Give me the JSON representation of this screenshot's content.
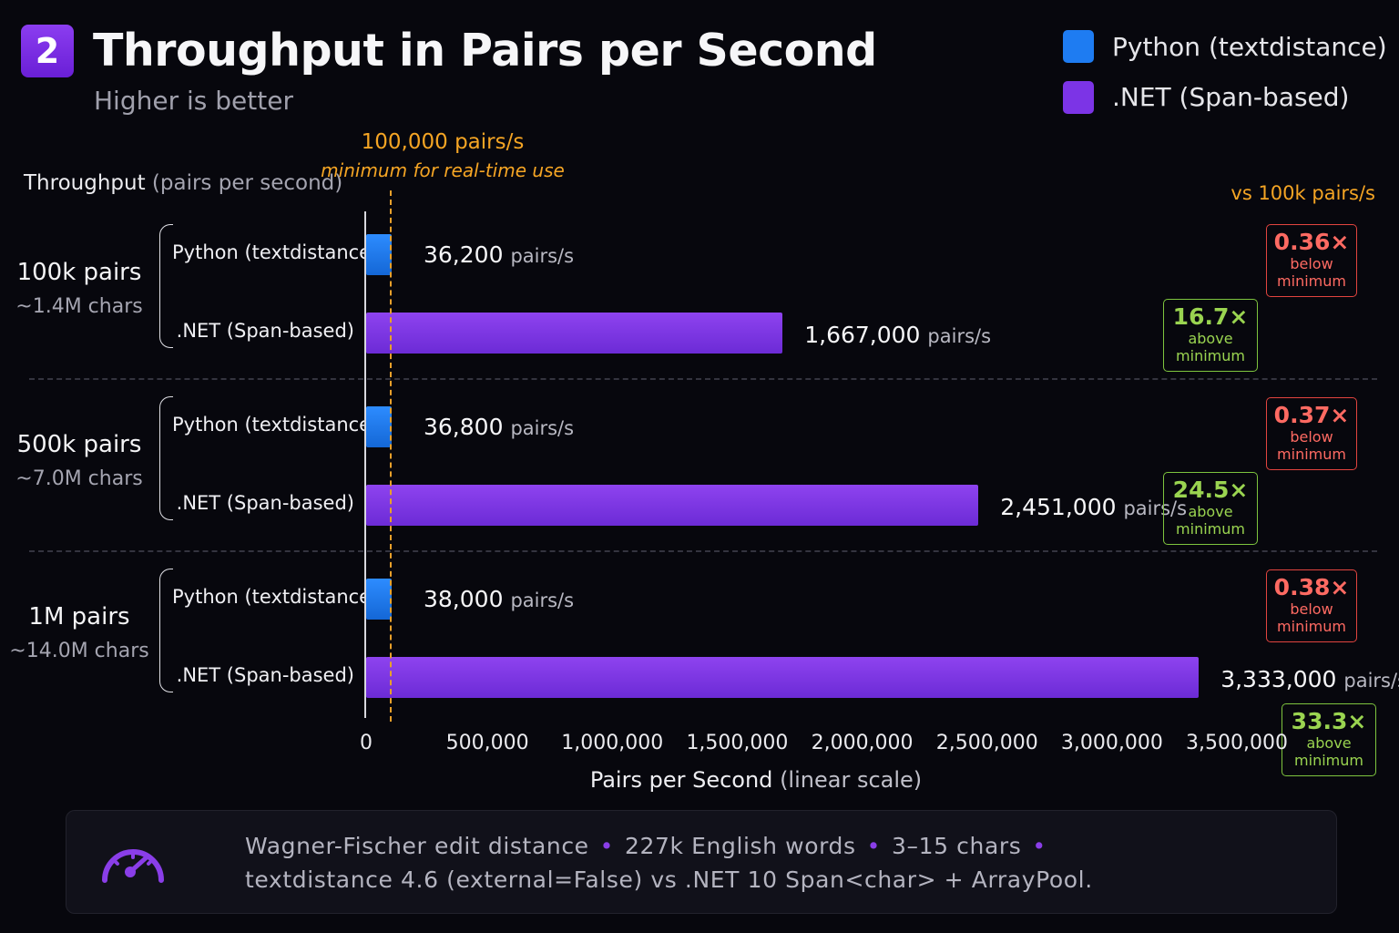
{
  "header": {
    "number": "2",
    "title": "Throughput in Pairs per Second",
    "subtitle": "Higher is better"
  },
  "legend": [
    {
      "label": "Python (textdistance)",
      "color": "#1e7cf2"
    },
    {
      "label": ".NET (Span-based)",
      "color": "#7c34e6"
    }
  ],
  "reference": {
    "value_label": "100,000 pairs/s",
    "note": "minimum for real-time use",
    "value": 100000
  },
  "axis": {
    "y_title": "Throughput",
    "y_title_paren": "(pairs per second)",
    "ratio_header": "vs 100k pairs/s",
    "x_title": "Pairs per Second",
    "x_title_paren": "(linear scale)"
  },
  "chart_data": {
    "type": "bar",
    "orientation": "horizontal",
    "title": "Throughput in Pairs per Second",
    "subtitle": "Higher is better",
    "xlabel": "Pairs per Second (linear scale)",
    "ylabel": "Throughput (pairs per second)",
    "xlim": [
      0,
      3500000
    ],
    "ticks": [
      {
        "value": 0,
        "label": "0"
      },
      {
        "value": 500000,
        "label": "500,000"
      },
      {
        "value": 1000000,
        "label": "1,000,000"
      },
      {
        "value": 1500000,
        "label": "1,500,000"
      },
      {
        "value": 2000000,
        "label": "2,000,000"
      },
      {
        "value": 2500000,
        "label": "2,500,000"
      },
      {
        "value": 3000000,
        "label": "3,000,000"
      },
      {
        "value": 3500000,
        "label": "3,500,000"
      }
    ],
    "series_names": [
      "Python (textdistance)",
      ".NET (Span-based)"
    ],
    "groups": [
      {
        "label": "100k pairs",
        "sub": "~1.4M chars",
        "bars": [
          {
            "series": "Python (textdistance)",
            "value": 36200,
            "value_label": "36,200",
            "unit": "pairs/s",
            "ratio": "0.36×",
            "ratio_text1": "below",
            "ratio_text2": "minimum",
            "status": "below"
          },
          {
            "series": ".NET (Span-based)",
            "value": 1667000,
            "value_label": "1,667,000",
            "unit": "pairs/s",
            "ratio": "16.7×",
            "ratio_text1": "above",
            "ratio_text2": "minimum",
            "status": "above"
          }
        ]
      },
      {
        "label": "500k pairs",
        "sub": "~7.0M chars",
        "bars": [
          {
            "series": "Python (textdistance)",
            "value": 36800,
            "value_label": "36,800",
            "unit": "pairs/s",
            "ratio": "0.37×",
            "ratio_text1": "below",
            "ratio_text2": "minimum",
            "status": "below"
          },
          {
            "series": ".NET (Span-based)",
            "value": 2451000,
            "value_label": "2,451,000",
            "unit": "pairs/s",
            "ratio": "24.5×",
            "ratio_text1": "above",
            "ratio_text2": "minimum",
            "status": "above"
          }
        ]
      },
      {
        "label": "1M pairs",
        "sub": "~14.0M chars",
        "bars": [
          {
            "series": "Python (textdistance)",
            "value": 38000,
            "value_label": "38,000",
            "unit": "pairs/s",
            "ratio": "0.38×",
            "ratio_text1": "below",
            "ratio_text2": "minimum",
            "status": "below"
          },
          {
            "series": ".NET (Span-based)",
            "value": 3333000,
            "value_label": "3,333,000",
            "unit": "pairs/s",
            "ratio": "33.3×",
            "ratio_text1": "above",
            "ratio_text2": "minimum",
            "status": "above"
          }
        ]
      }
    ]
  },
  "footer": {
    "icon": "speedometer-icon",
    "line1_parts": [
      "Wagner-Fischer edit distance",
      "227k English words",
      "3–15 chars"
    ],
    "line2": "textdistance 4.6 (external=False) vs .NET 10 Span<char> + ArrayPool."
  },
  "colors": {
    "python": "#1e7cf2",
    "dotnet": "#7c34e6",
    "reference": "#f5a524",
    "below": "#ff6a62",
    "above": "#9ad450"
  }
}
